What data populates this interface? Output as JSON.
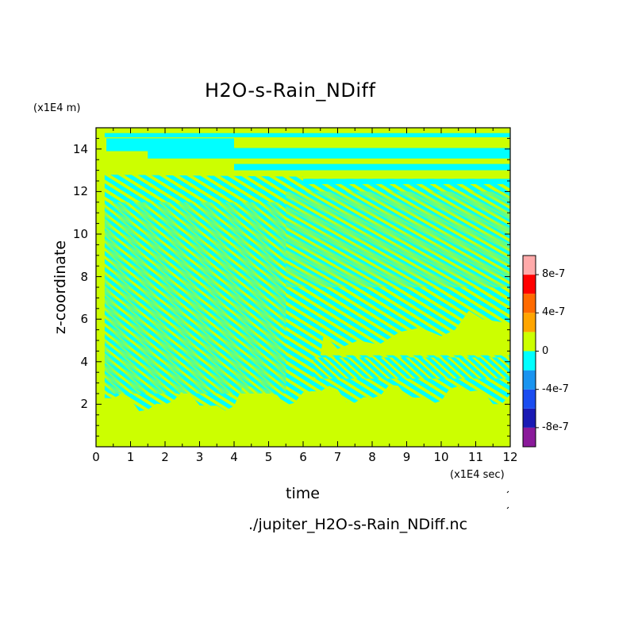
{
  "chart_data": {
    "type": "heatmap",
    "title": "H2O-s-Rain_NDiff",
    "xlabel": "time",
    "ylabel": "z-coordinate",
    "x_unit": "(x1E4 sec)",
    "y_unit": "(x1E4 m)",
    "xlim": [
      0,
      12
    ],
    "ylim": [
      0,
      15
    ],
    "x_ticks": [
      "0",
      "1",
      "2",
      "3",
      "4",
      "5",
      "6",
      "7",
      "8",
      "9",
      "10",
      "11",
      "12"
    ],
    "y_ticks": [
      "2",
      "4",
      "6",
      "8",
      "10",
      "12",
      "14"
    ],
    "colorbar": {
      "levels": [
        -1e-06,
        -8e-07,
        -6e-07,
        -4e-07,
        -2e-07,
        0,
        2e-07,
        4e-07,
        6e-07,
        8e-07,
        1e-06
      ],
      "colors": [
        "#8a1a9a",
        "#1a1ab4",
        "#1a4cf0",
        "#1a94f0",
        "#00ffff",
        "#ccff00",
        "#ffa500",
        "#ff6a00",
        "#ff0000",
        "#ffaaaa"
      ],
      "tick_labels": [
        "8e-7",
        "4e-7",
        "0",
        "-4e-7",
        "-8e-7"
      ]
    },
    "dominant_colors": {
      "negative": "#00ffff",
      "positive": "#ccff00"
    }
  },
  "footer": {
    "filename": "./jupiter_H2O-s-Rain_NDiff.nc"
  }
}
